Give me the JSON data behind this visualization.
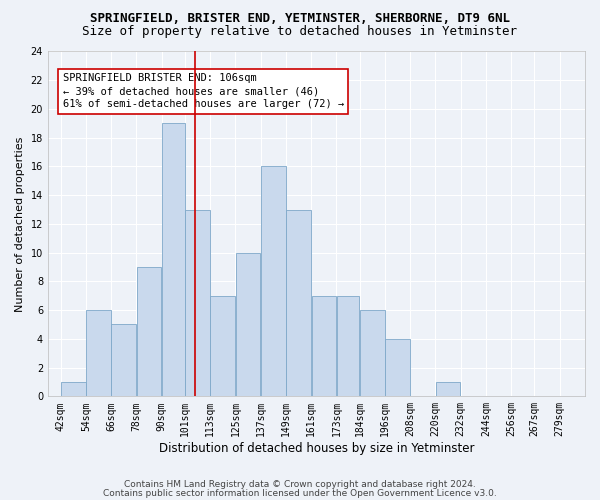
{
  "title": "SPRINGFIELD, BRISTER END, YETMINSTER, SHERBORNE, DT9 6NL",
  "subtitle": "Size of property relative to detached houses in Yetminster",
  "xlabel": "Distribution of detached houses by size in Yetminster",
  "ylabel": "Number of detached properties",
  "bar_left_edges": [
    42,
    54,
    66,
    78,
    90,
    101,
    113,
    125,
    137,
    149,
    161,
    173,
    184,
    196,
    208,
    220,
    232,
    244,
    256,
    267
  ],
  "bar_widths": [
    12,
    12,
    12,
    12,
    11,
    12,
    12,
    12,
    12,
    12,
    12,
    11,
    12,
    12,
    12,
    12,
    12,
    12,
    11,
    12
  ],
  "bar_heights": [
    1,
    6,
    5,
    9,
    19,
    13,
    7,
    10,
    16,
    13,
    7,
    7,
    6,
    4,
    0,
    1,
    0,
    0,
    0,
    0
  ],
  "tick_labels": [
    "42sqm",
    "54sqm",
    "66sqm",
    "78sqm",
    "90sqm",
    "101sqm",
    "113sqm",
    "125sqm",
    "137sqm",
    "149sqm",
    "161sqm",
    "173sqm",
    "184sqm",
    "196sqm",
    "208sqm",
    "220sqm",
    "232sqm",
    "244sqm",
    "256sqm",
    "267sqm",
    "279sqm"
  ],
  "tick_positions": [
    42,
    54,
    66,
    78,
    90,
    101,
    113,
    125,
    137,
    149,
    161,
    173,
    184,
    196,
    208,
    220,
    232,
    244,
    256,
    267,
    279
  ],
  "bar_color": "#c9d9ed",
  "bar_edge_color": "#7ea8c9",
  "vline_x": 106,
  "vline_color": "#cc0000",
  "ylim": [
    0,
    24
  ],
  "yticks": [
    0,
    2,
    4,
    6,
    8,
    10,
    12,
    14,
    16,
    18,
    20,
    22,
    24
  ],
  "annotation_box_text": "SPRINGFIELD BRISTER END: 106sqm\n← 39% of detached houses are smaller (46)\n61% of semi-detached houses are larger (72) →",
  "footer_line1": "Contains HM Land Registry data © Crown copyright and database right 2024.",
  "footer_line2": "Contains public sector information licensed under the Open Government Licence v3.0.",
  "background_color": "#eef2f8",
  "plot_bg_color": "#eef2f8",
  "grid_color": "#ffffff",
  "title_fontsize": 9,
  "subtitle_fontsize": 9,
  "xlabel_fontsize": 8.5,
  "ylabel_fontsize": 8,
  "tick_fontsize": 7,
  "annotation_fontsize": 7.5,
  "footer_fontsize": 6.5
}
